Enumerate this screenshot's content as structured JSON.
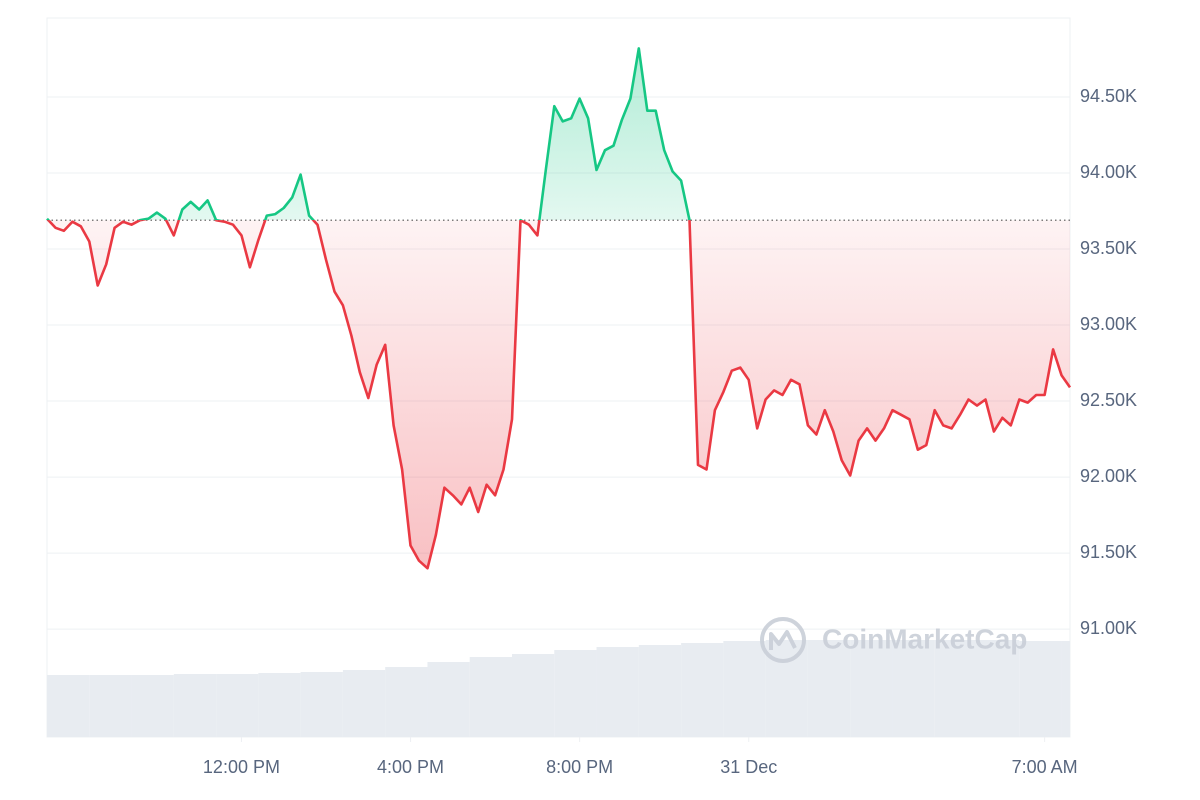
{
  "chart_data": {
    "type": "line",
    "x": [
      7.4,
      7.6,
      7.8,
      8.0,
      8.2,
      8.4,
      8.6,
      8.8,
      9.0,
      9.2,
      9.4,
      9.6,
      9.8,
      10.0,
      10.2,
      10.4,
      10.6,
      10.8,
      11.0,
      11.2,
      11.4,
      11.6,
      11.8,
      12.0,
      12.2,
      12.4,
      12.6,
      12.8,
      13.0,
      13.2,
      13.4,
      13.6,
      13.8,
      14.0,
      14.2,
      14.4,
      14.6,
      14.8,
      15.0,
      15.2,
      15.4,
      15.6,
      15.8,
      16.0,
      16.2,
      16.4,
      16.6,
      16.8,
      17.0,
      17.2,
      17.4,
      17.6,
      17.8,
      18.0,
      18.2,
      18.4,
      18.6,
      18.8,
      19.0,
      19.2,
      19.4,
      19.6,
      19.8,
      20.0,
      20.2,
      20.4,
      20.6,
      20.8,
      21.0,
      21.2,
      21.4,
      21.6,
      21.8,
      22.0,
      22.2,
      22.4,
      22.6,
      22.8,
      23.0,
      23.2,
      23.4,
      23.6,
      23.8,
      24.0,
      24.2,
      24.4,
      24.6,
      24.8,
      25.0,
      25.2,
      25.4,
      25.6,
      25.8,
      26.0,
      26.2,
      26.4,
      26.6,
      26.8,
      27.0,
      27.2,
      27.4,
      27.6,
      27.8,
      28.0,
      28.2,
      28.4,
      28.6,
      28.8,
      29.0,
      29.2,
      29.4,
      29.6,
      29.8,
      30.0,
      30.2,
      30.4,
      30.6,
      30.8,
      31.0,
      31.2,
      31.4,
      31.6
    ],
    "values": [
      93700,
      93640,
      93620,
      93680,
      93650,
      93550,
      93260,
      93400,
      93640,
      93680,
      93660,
      93690,
      93700,
      93740,
      93700,
      93590,
      93760,
      93810,
      93760,
      93820,
      93690,
      93680,
      93660,
      93590,
      93380,
      93560,
      93720,
      93730,
      93770,
      93840,
      93990,
      93720,
      93660,
      93430,
      93220,
      93130,
      92930,
      92690,
      92520,
      92740,
      92870,
      92340,
      92050,
      91550,
      91450,
      91400,
      91620,
      91930,
      91880,
      91820,
      91930,
      91770,
      91950,
      91880,
      92050,
      92380,
      93690,
      93660,
      93590,
      94020,
      94440,
      94340,
      94360,
      94490,
      94360,
      94020,
      94150,
      94180,
      94350,
      94490,
      94820,
      94410,
      94410,
      94150,
      94010,
      93950,
      93690,
      92080,
      92050,
      92440,
      92560,
      92700,
      92720,
      92640,
      92320,
      92510,
      92570,
      92540,
      92640,
      92610,
      92340,
      92280,
      92440,
      92300,
      92110,
      92010,
      92240,
      92320,
      92240,
      92320,
      92440,
      92410,
      92380,
      92180,
      92210,
      92440,
      92340,
      92320,
      92410,
      92510,
      92470,
      92510,
      92300,
      92390,
      92340,
      92510,
      92490,
      92540,
      92540,
      92840,
      92670,
      92590
    ],
    "baseline": 93690,
    "colors": {
      "up": "#16c784",
      "down": "#ea3943"
    },
    "volume": {
      "x": [
        7.4,
        8.4,
        9.4,
        10.4,
        11.4,
        12.4,
        13.4,
        14.4,
        15.4,
        16.4,
        17.4,
        18.4,
        19.4,
        20.4,
        21.4,
        22.4,
        23.4,
        24.4,
        25.4,
        26.4,
        27.4,
        28.4,
        29.4,
        30.4,
        31.4
      ],
      "values": [
        62,
        62,
        62,
        63,
        63,
        64,
        65,
        67,
        70,
        75,
        80,
        83,
        87,
        90,
        92,
        94,
        96,
        97,
        97,
        97,
        97,
        97,
        97,
        96,
        96
      ],
      "color": "#e8ecf1",
      "axis": "y2"
    },
    "xlim": [
      7.4,
      31.6
    ],
    "xticks": [
      {
        "value": 12,
        "label": "12:00 PM"
      },
      {
        "value": 16,
        "label": "4:00 PM"
      },
      {
        "value": 20,
        "label": "8:00 PM"
      },
      {
        "value": 24,
        "label": "31 Dec"
      },
      {
        "value": 31,
        "label": "7:00 AM"
      }
    ],
    "ylim": [
      90290,
      95020
    ],
    "yticks": [
      {
        "value": 91000,
        "label": "91.00K"
      },
      {
        "value": 91500,
        "label": "91.50K"
      },
      {
        "value": 92000,
        "label": "92.00K"
      },
      {
        "value": 92500,
        "label": "92.50K"
      },
      {
        "value": 93000,
        "label": "93.00K"
      },
      {
        "value": 93500,
        "label": "93.50K"
      },
      {
        "value": 94000,
        "label": "94.00K"
      },
      {
        "value": 94500,
        "label": "94.50K"
      }
    ],
    "y2lim": [
      0,
      100
    ],
    "grid": true,
    "watermark": "CoinMarketCap"
  }
}
